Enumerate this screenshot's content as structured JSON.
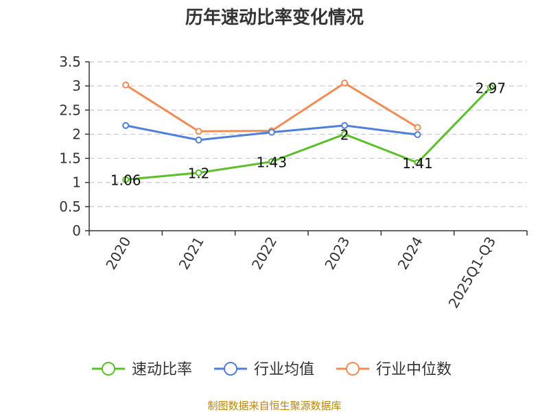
{
  "chart_data": {
    "type": "line",
    "title": "历年速动比率变化情况",
    "categories": [
      "2020",
      "2021",
      "2022",
      "2023",
      "2024",
      "2025Q1-Q3"
    ],
    "ylim": [
      0,
      3.5
    ],
    "yticks": [
      "0",
      "0.5",
      "1",
      "1.5",
      "2",
      "2.5",
      "3",
      "3.5"
    ],
    "grid": true,
    "legend_position": "bottom",
    "series": [
      {
        "name": "速动比率",
        "color": "#5cbf2a",
        "values": [
          1.06,
          1.2,
          1.43,
          2,
          1.41,
          2.97
        ],
        "labels": [
          "1.06",
          "1.2",
          "1.43",
          "2",
          "1.41",
          "2.97"
        ],
        "show_labels": true
      },
      {
        "name": "行业均值",
        "color": "#4f7fd9",
        "values": [
          2.18,
          1.88,
          2.04,
          2.18,
          1.99,
          null
        ],
        "show_labels": false
      },
      {
        "name": "行业中位数",
        "color": "#f28c55",
        "values": [
          3.02,
          2.06,
          2.07,
          3.06,
          2.14,
          null
        ],
        "show_labels": false
      }
    ]
  },
  "source": "制图数据来自恒生聚源数据库"
}
